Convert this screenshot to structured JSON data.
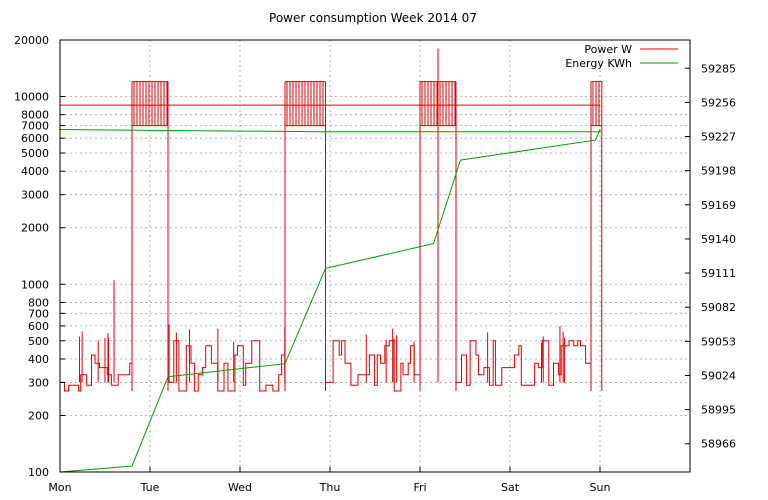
{
  "chart_data": {
    "type": "line",
    "title": "Power consumption Week 2014 07",
    "x_axis": {
      "ticks": [
        "Mon",
        "Tue",
        "Wed",
        "Thu",
        "Fri",
        "Sat",
        "Sun"
      ],
      "range_days": [
        0,
        7
      ]
    },
    "y_left": {
      "scale": "log",
      "range": [
        100,
        20000
      ],
      "ticks": [
        100,
        200,
        300,
        400,
        500,
        600,
        700,
        800,
        1000,
        2000,
        3000,
        4000,
        5000,
        6000,
        7000,
        8000,
        10000,
        20000
      ]
    },
    "y_right": {
      "scale": "linear",
      "range": [
        58942,
        59309
      ],
      "ticks": [
        58966,
        58995,
        59024,
        59053,
        59082,
        59111,
        59140,
        59169,
        59198,
        59227,
        59256,
        59285
      ]
    },
    "grid": true,
    "legend_position": "top-right",
    "colors": {
      "power": "#e00000",
      "energy": "#00a000"
    },
    "series": [
      {
        "name": "Power W",
        "axis": "left",
        "baseline_w": 9000,
        "baseline_end_day": 6.0,
        "low_spans": [
          [
            0.0,
            0.8
          ],
          [
            1.2,
            2.5
          ],
          [
            2.95,
            4.0
          ],
          [
            4.4,
            5.9
          ]
        ],
        "high_blocks": [
          [
            0.8,
            1.2
          ],
          [
            2.5,
            2.95
          ],
          [
            4.0,
            4.4
          ],
          [
            5.9,
            6.02
          ]
        ],
        "level_on_w": 12000,
        "level_off_w": 7000,
        "spikes": [
          {
            "day": 0.6,
            "w": 1050
          },
          {
            "day": 4.2,
            "w": 18000
          }
        ],
        "drops": [
          {
            "day": 0.8,
            "w": 9000
          },
          {
            "day": 1.2,
            "w": 12000
          },
          {
            "day": 2.95,
            "w": 7000
          }
        ]
      },
      {
        "name": "Energy KWh",
        "axis": "right",
        "points": [
          {
            "day": 0.0,
            "kwh": 58942
          },
          {
            "day": 0.8,
            "kwh": 58947
          },
          {
            "day": 1.2,
            "kwh": 59023
          },
          {
            "day": 2.5,
            "kwh": 59034
          },
          {
            "day": 2.95,
            "kwh": 59115
          },
          {
            "day": 4.15,
            "kwh": 59136
          },
          {
            "day": 4.45,
            "kwh": 59207
          },
          {
            "day": 5.95,
            "kwh": 59224
          },
          {
            "day": 6.0,
            "kwh": 59233
          },
          {
            "day": 6.0,
            "kwh": 59231
          },
          {
            "day": 2.95,
            "kwh": 59231
          },
          {
            "day": 0.0,
            "kwh": 59233
          }
        ]
      }
    ]
  }
}
